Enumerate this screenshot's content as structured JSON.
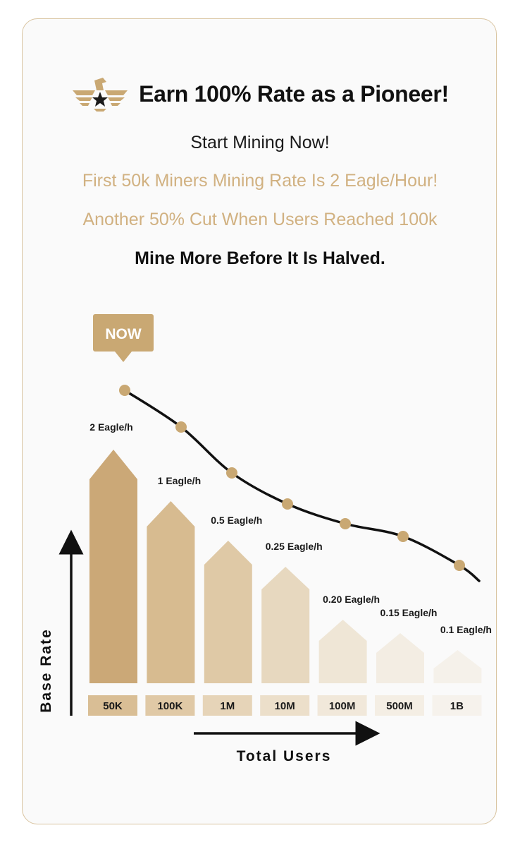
{
  "header": {
    "title": "Earn 100% Rate as a Pioneer!",
    "logo_icon": "eagle-star-logo-icon"
  },
  "lines": {
    "start": "Start Mining Now!",
    "first": "First 50k Miners Mining Rate Is 2 Eagle/Hour!",
    "another": "Another 50% Cut When Users Reached 100k",
    "mine_more": "Mine More Before It Is Halved."
  },
  "colors": {
    "gold": "#c9a873",
    "gold_text": "#d1b181",
    "dark": "#111111"
  },
  "chart_data": {
    "type": "bar",
    "title": "",
    "xlabel": "Total Users",
    "ylabel": "Base Rate",
    "categories": [
      "50K",
      "100K",
      "1M",
      "10M",
      "100M",
      "500M",
      "1B"
    ],
    "values": [
      2,
      1,
      0.5,
      0.25,
      0.2,
      0.15,
      0.1
    ],
    "value_labels": [
      "2 Eagle/h",
      "1 Eagle/h",
      "0.5 Eagle/h",
      "0.25 Eagle/h",
      "0.20 Eagle/h",
      "0.15 Eagle/h",
      "0.1 Eagle/h"
    ],
    "callout": "NOW",
    "callout_category": "50K"
  }
}
